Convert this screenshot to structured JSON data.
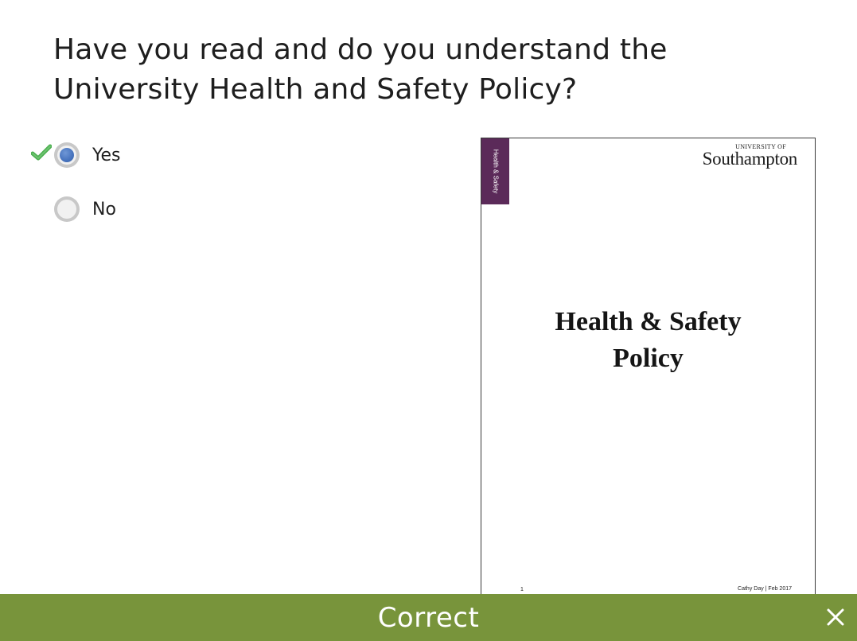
{
  "question": {
    "text": "Have you read and do you understand the University Health and Safety Policy?"
  },
  "options": [
    {
      "label": "Yes",
      "selected": true,
      "marked_correct": true
    },
    {
      "label": "No",
      "selected": false,
      "marked_correct": false
    }
  ],
  "document_preview": {
    "side_tab": "Health & Safety",
    "logo_small": "UNIVERSITY OF",
    "logo_big": "Southampton",
    "title_line1": "Health & Safety",
    "title_line2": "Policy",
    "page_number": "1",
    "footer_author": "Cathy Day | Feb 2017"
  },
  "feedback": {
    "text": "Correct",
    "color": "#78943b"
  },
  "icons": {
    "check": "check-mark-icon",
    "close": "close-icon"
  },
  "colors": {
    "radio_selected": "#4a76c0",
    "check": "#4caf50",
    "doc_tab": "#5b2a59"
  }
}
